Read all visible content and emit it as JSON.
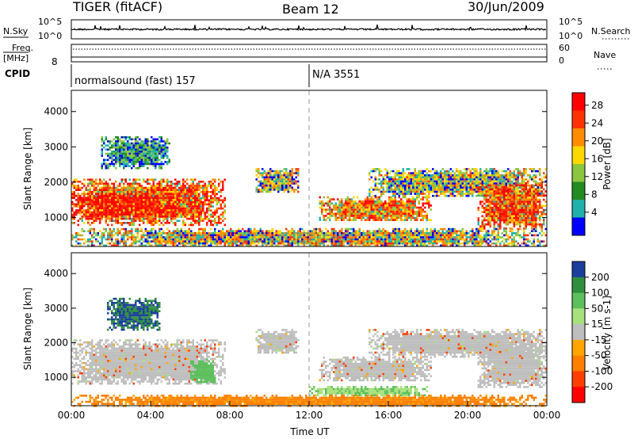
{
  "header": {
    "radar": "TIGER (fitACF)",
    "beam": "Beam 12",
    "date": "30/Jun/2009"
  },
  "sky_panel": {
    "left_label": "N.Sky",
    "right_label": "N.Search",
    "left_ticks": [
      "10^5",
      "10^0"
    ],
    "right_ticks": [
      "10^5",
      "10^0"
    ]
  },
  "freq_panel": {
    "left_label_line1": "Freq.",
    "left_label_line2": "[MHz]",
    "right_label": "Nave",
    "left_ticks": [
      "8"
    ],
    "right_ticks": [
      "60",
      "0"
    ]
  },
  "cpid": {
    "label": "CPID",
    "entries": [
      {
        "text": "normalsound (fast) 157",
        "start_hour": 0
      },
      {
        "text": "N/A 3551",
        "start_hour": 12
      }
    ]
  },
  "chart_data": [
    {
      "type": "heatmap",
      "name": "power",
      "ylabel": "Slant Range [km]",
      "yticks": [
        1000,
        2000,
        3000,
        4000
      ],
      "ylim": [
        180,
        4600
      ],
      "xlim": [
        0,
        24
      ],
      "colorbar": {
        "label": "Power [dB]",
        "ticks": [
          "28",
          "24",
          "20",
          "16",
          "12",
          "8",
          "4"
        ],
        "colors": [
          "#ff0000",
          "#ff3300",
          "#ff8c00",
          "#ffd700",
          "#8cc63f",
          "#228b22",
          "#20b2aa",
          "#0000ff"
        ]
      },
      "regions": [
        {
          "x": [
            0.0,
            7.8
          ],
          "y": [
            800,
            2100
          ],
          "level": "high"
        },
        {
          "x": [
            0.0,
            5.5
          ],
          "y": [
            1000,
            1700
          ],
          "level": "very_high"
        },
        {
          "x": [
            9.3,
            11.5
          ],
          "y": [
            1700,
            2400
          ],
          "level": "mid"
        },
        {
          "x": [
            12.5,
            18.2
          ],
          "y": [
            900,
            1600
          ],
          "level": "mid_high"
        },
        {
          "x": [
            15.0,
            24.0
          ],
          "y": [
            1600,
            2400
          ],
          "level": "mid"
        },
        {
          "x": [
            20.5,
            24.0
          ],
          "y": [
            700,
            2000
          ],
          "level": "high"
        },
        {
          "x": [
            1.5,
            5.0
          ],
          "y": [
            2400,
            3300
          ],
          "level": "low"
        },
        {
          "x": [
            0.0,
            24.0
          ],
          "y": [
            200,
            700
          ],
          "level": "mixed"
        }
      ]
    },
    {
      "type": "heatmap",
      "name": "velocity",
      "ylabel": "Slant Range [km]",
      "yticks": [
        1000,
        2000,
        3000,
        4000
      ],
      "ylim": [
        180,
        4600
      ],
      "xlim": [
        0,
        24
      ],
      "xticks": [
        "00:00",
        "04:00",
        "08:00",
        "12:00",
        "16:00",
        "20:00",
        "00:00"
      ],
      "xlabel": "Time UT",
      "colorbar": {
        "label": "Velocity [m s-1]",
        "ticks": [
          "200",
          "100",
          "50",
          "15",
          "-15",
          "-50",
          "-100",
          "-200"
        ],
        "colors": [
          "#1c3f9e",
          "#2f8f3f",
          "#5cc05c",
          "#a8e07c",
          "#bebebe",
          "#ffa500",
          "#ff7f00",
          "#ff4000",
          "#ff0000"
        ]
      },
      "regions": [
        {
          "x": [
            0.0,
            7.8
          ],
          "y": [
            800,
            2100
          ],
          "velocity": 0
        },
        {
          "x": [
            6.0,
            7.3
          ],
          "y": [
            850,
            1550
          ],
          "velocity": 60
        },
        {
          "x": [
            9.3,
            11.5
          ],
          "y": [
            1700,
            2400
          ],
          "velocity": 0
        },
        {
          "x": [
            12.5,
            18.2
          ],
          "y": [
            900,
            1600
          ],
          "velocity": 0
        },
        {
          "x": [
            15.0,
            24.0
          ],
          "y": [
            1600,
            2400
          ],
          "velocity": 0
        },
        {
          "x": [
            20.5,
            24.0
          ],
          "y": [
            700,
            2000
          ],
          "velocity": 0
        },
        {
          "x": [
            12.0,
            18.0
          ],
          "y": [
            500,
            750
          ],
          "velocity": 30
        },
        {
          "x": [
            1.8,
            4.5
          ],
          "y": [
            2400,
            3300
          ],
          "velocity": 150
        },
        {
          "x": [
            0.0,
            24.0
          ],
          "y": [
            200,
            500
          ],
          "velocity": -40
        }
      ]
    }
  ]
}
